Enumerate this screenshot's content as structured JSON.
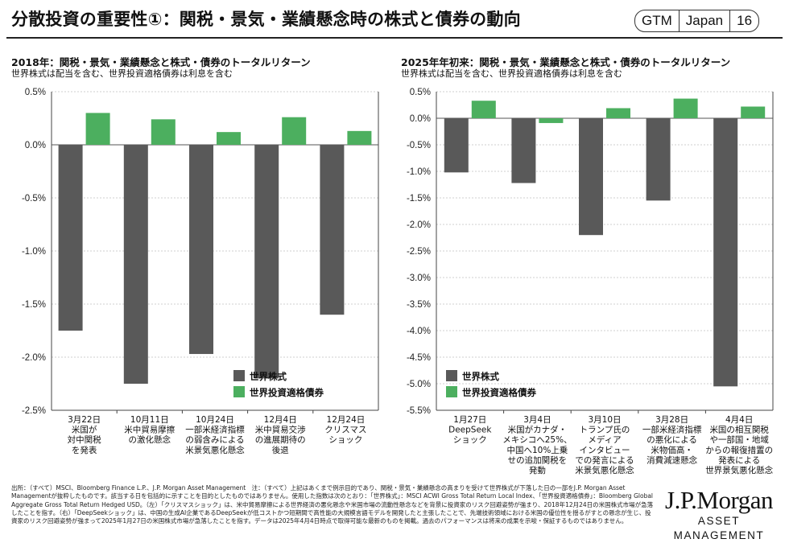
{
  "title": "分散投資の重要性①：関税・景気・業績懸念時の株式と債券の動向",
  "tags": [
    "GTM",
    "Japan",
    "16"
  ],
  "colors": {
    "stock": "#595959",
    "bond": "#4caf5f"
  },
  "left": {
    "title": "2018年：関税・景気・業績懸念と株式・債券のトータルリターン",
    "subtitle": "世界株式は配当を含む、世界投資適格債券は利息を含む"
  },
  "right": {
    "title": "2025年年初来：関税・景気・業績懸念と株式・債券のトータルリターン",
    "subtitle": "世界株式は配当を含む、世界投資適格債券は利息を含む"
  },
  "chart_data": [
    {
      "type": "bar",
      "title": "2018年：関税・景気・業績懸念と株式・債券のトータルリターン",
      "categories": [
        [
          "3月22日",
          "米国が",
          "対中関税",
          "を発表"
        ],
        [
          "10月11日",
          "米中貿易摩擦",
          "の激化懸念"
        ],
        [
          "10月24日",
          "一部米経済指標",
          "の弱含みによる",
          "米景気悪化懸念"
        ],
        [
          "12月4日",
          "米中貿易交渉",
          "の進展期待の",
          "後退"
        ],
        [
          "12月24日",
          "クリスマス",
          "ショック"
        ]
      ],
      "series": [
        {
          "name": "世界株式",
          "values": [
            -1.75,
            -2.25,
            -1.97,
            -2.2,
            -1.6
          ]
        },
        {
          "name": "世界投資適格債券",
          "values": [
            0.3,
            0.24,
            0.12,
            0.26,
            0.13
          ]
        }
      ],
      "ylim": [
        -2.5,
        0.5
      ],
      "yticks": [
        0.5,
        0,
        -0.5,
        -1,
        -1.5,
        -2,
        -2.5
      ],
      "ytick_labels": [
        "0.5%",
        "0.0%",
        "-0.5%",
        "-1.0%",
        "-1.5%",
        "-2.0%",
        "-2.5%"
      ],
      "grid": true,
      "legend": "bottom-right"
    },
    {
      "type": "bar",
      "title": "2025年年初来：関税・景気・業績懸念と株式・債券のトータルリターン",
      "categories": [
        [
          "1月27日",
          "DeepSeek",
          "ショック"
        ],
        [
          "3月4日",
          "米国がカナダ・",
          "メキシコへ25%、",
          "中国へ10%上乗",
          "せの追加関税を",
          "発動"
        ],
        [
          "3月10日",
          "トランプ氏の",
          "メディア",
          "インタビュー",
          "での発言による",
          "米景気悪化懸念"
        ],
        [
          "3月28日",
          "一部米経済指標",
          "の悪化による",
          "米物価高・",
          "消費減速懸念"
        ],
        [
          "4月4日",
          "米国の相互関税",
          "や一部国・地域",
          "からの報復措置の",
          "発表による",
          "世界景気悪化懸念"
        ]
      ],
      "series": [
        {
          "name": "世界株式",
          "values": [
            -1.02,
            -1.22,
            -2.2,
            -1.55,
            -5.05
          ]
        },
        {
          "name": "世界投資適格債券",
          "values": [
            0.33,
            -0.09,
            0.19,
            0.37,
            0.22
          ]
        }
      ],
      "ylim": [
        -5.5,
        0.5
      ],
      "yticks": [
        0.5,
        0,
        -0.5,
        -1,
        -1.5,
        -2,
        -2.5,
        -3,
        -3.5,
        -4,
        -4.5,
        -5,
        -5.5
      ],
      "ytick_labels": [
        "0.5%",
        "0.0%",
        "-0.5%",
        "-1.0%",
        "-1.5%",
        "-2.0%",
        "-2.5%",
        "-3.0%",
        "-3.5%",
        "-4.0%",
        "-4.5%",
        "-5.0%",
        "-5.5%"
      ],
      "grid": true,
      "legend": "bottom-right"
    }
  ],
  "footnote": "出所：（すべて）MSCI、Bloomberg Finance L.P.、J.P. Morgan Asset Management　注：（すべて）上記はあくまで例示目的であり、関税・景気・業績懸念の高まりを受けて世界株式が下落した日の一部をJ.P. Morgan Asset Managementが抜粋したものです。該当する日を包括的に示すことを目的としたものではありません。使用した指数は次のとおり：「世界株式」：MSCI ACWI Gross Total Return Local Index、「世界投資適格債券」：Bloomberg Global Aggregate Gross Total Return Hedged USD。（左）「クリスマスショック」は、米中貿易摩擦による世界経済の悪化懸念や米国市場の流動性懸念などを背景に投資家のリスク回避姿勢が強まり、2018年12月24日の米国株式市場が急落したことを指す。（右）「DeepSeekショック」は、中国の生成AI企業であるDeepSeekが低コストかつ短期間で高性能の大規模言語モデルを開発したと主張したことで、先端技術領域における米国の優位性を揺るがすとの懸念が生じ、投資家のリスク回避姿勢が強まって2025年1月27日の米国株式市場が急落したことを指す。データは2025年4月4日時点で取得可能な最新のものを掲載。過去のパフォーマンスは将来の成果を示唆・保証するものではありません。",
  "logo": {
    "line1": "J.P.Morgan",
    "line2": "ASSET MANAGEMENT"
  }
}
